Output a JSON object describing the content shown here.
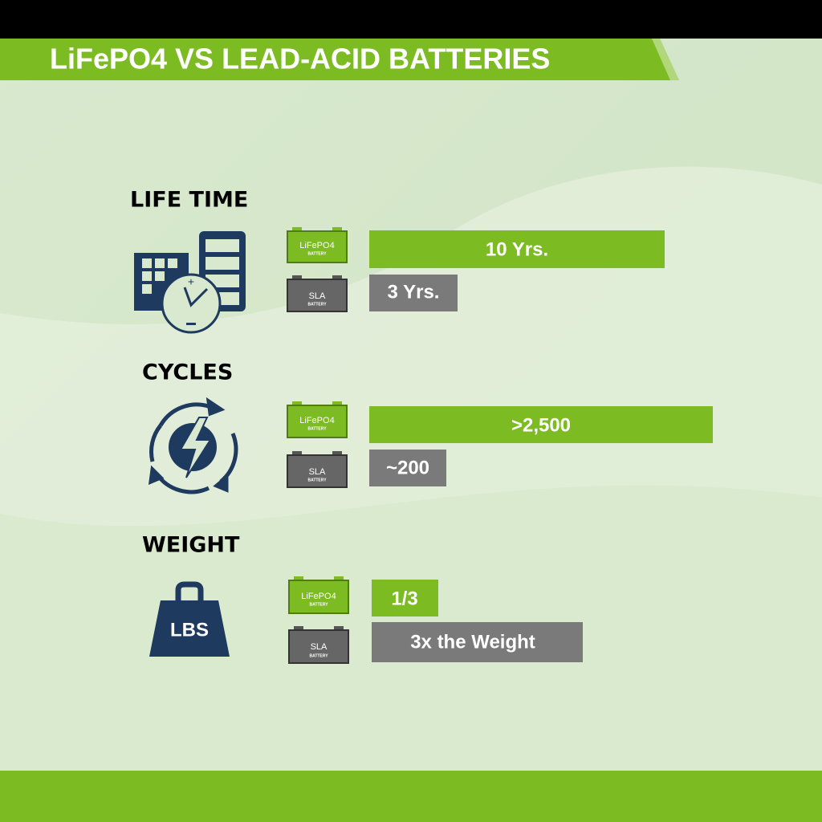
{
  "title": "LiFePO4 VS LEAD-ACID BATTERIES",
  "sections": [
    {
      "heading": "LIFE TIME",
      "rows": [
        {
          "battery": "LiFePO4",
          "battery_sub": "BATTERY",
          "value": "10 Yrs."
        },
        {
          "battery": "SLA",
          "battery_sub": "BATTERY",
          "value": "3 Yrs."
        }
      ]
    },
    {
      "heading": "CYCLES",
      "rows": [
        {
          "battery": "LiFePO4",
          "battery_sub": "BATTERY",
          "value": ">2,500"
        },
        {
          "battery": "SLA",
          "battery_sub": "BATTERY",
          "value": "~200"
        }
      ]
    },
    {
      "heading": "WEIGHT",
      "icon_label": "LBS",
      "rows": [
        {
          "battery": "LiFePO4",
          "battery_sub": "BATTERY",
          "value": "1/3"
        },
        {
          "battery": "SLA",
          "battery_sub": "BATTERY",
          "value": "3x the Weight"
        }
      ]
    }
  ]
}
